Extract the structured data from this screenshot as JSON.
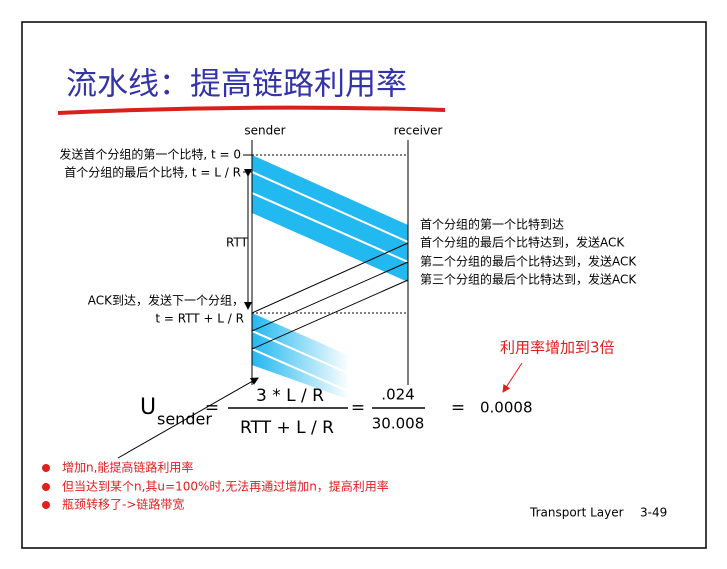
{
  "title": "流水线：提高链路利用率",
  "sender_label": "sender",
  "receiver_label": "receiver",
  "left_labels": [
    "发送首个分组的第一个比特, t = 0",
    "首个分组的最后个比特, t = L / R",
    "RTT",
    "ACK到达，发送下一个分组，",
    "t = RTT + L / R"
  ],
  "right_labels": [
    "首个分组的第一个比特到达",
    "首个分组的最后个比特达到，发送ACK",
    "第二个分组的最后个比特达到，发送ACK",
    "第三个分组的最后个比特达到，发送ACK"
  ],
  "annotation": "利用率增加到3倍",
  "formula": {
    "u": "U",
    "subscript": "sender",
    "equals": [
      "=",
      "=",
      "="
    ],
    "numerator": "3 * L / R",
    "denominator": "RTT + L / R",
    "numerator2": ".024",
    "denominator2": "30.008",
    "result": "0.0008"
  },
  "bullets": [
    "增加n,能提高链路利用率",
    "但当达到某个n,其u=100%时,无法再通过增加n，提高利用率",
    "瓶颈转移了->链路带宽"
  ],
  "footer": {
    "label": "Transport Layer",
    "page": "3-49"
  }
}
